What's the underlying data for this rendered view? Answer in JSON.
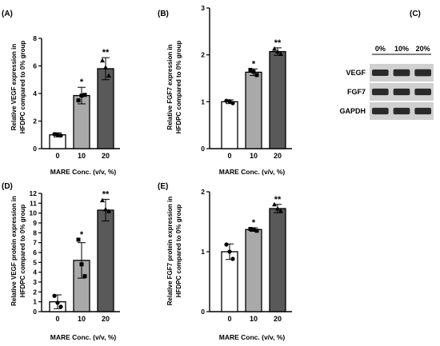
{
  "chart_data": [
    {
      "panel": "(A)",
      "type": "bar",
      "categories": [
        "0",
        "10",
        "20"
      ],
      "values": [
        1.0,
        3.85,
        5.8
      ],
      "errors": [
        0.15,
        0.6,
        0.8
      ],
      "points": [
        [
          1.05,
          0.95,
          1.0
        ],
        [
          3.5,
          3.9,
          3.85
        ],
        [
          6.4,
          5.3,
          5.9
        ]
      ],
      "point_markers": [
        "circle",
        "square",
        "triangle"
      ],
      "significance": [
        "",
        "*",
        "**"
      ],
      "bar_colors": [
        "#ffffff",
        "#a9a9a9",
        "#595959"
      ],
      "ylabel_line1": "Relative VEGF expression in",
      "ylabel_line2": "HFDPC compared to 0% group",
      "xlabel": "MARE Conc. (v/v, %)",
      "yticks": [
        "0",
        "2",
        "4",
        "6",
        "8"
      ],
      "ylim": [
        0,
        8
      ]
    },
    {
      "panel": "(B)",
      "type": "bar",
      "categories": [
        "0",
        "10",
        "20"
      ],
      "values": [
        1.0,
        1.63,
        2.07
      ],
      "errors": [
        0.04,
        0.07,
        0.08
      ],
      "points": [
        [
          1.02,
          0.97,
          1.01
        ],
        [
          1.68,
          1.57,
          1.64
        ],
        [
          2.13,
          2.02,
          2.07
        ]
      ],
      "point_markers": [
        "circle",
        "square",
        "triangle"
      ],
      "significance": [
        "",
        "*",
        "**"
      ],
      "bar_colors": [
        "#ffffff",
        "#a9a9a9",
        "#595959"
      ],
      "ylabel_line1": "Relative FGF7 expression in",
      "ylabel_line2": "HFDPC compared to 0% group",
      "xlabel": "MARE Conc. (v/v, %)",
      "yticks": [
        "0",
        "1",
        "2",
        "3"
      ],
      "ylim": [
        0,
        3
      ]
    },
    {
      "panel": "(D)",
      "type": "bar",
      "categories": [
        "0",
        "10",
        "20"
      ],
      "values": [
        1.0,
        5.2,
        10.3
      ],
      "errors": [
        0.7,
        1.8,
        1.1
      ],
      "points": [
        [
          1.6,
          0.5,
          0.9
        ],
        [
          7.3,
          3.6,
          4.8
        ],
        [
          11.3,
          10.2,
          10.4
        ]
      ],
      "point_markers": [
        "circle",
        "square",
        "triangle"
      ],
      "significance": [
        "",
        "*",
        "**"
      ],
      "bar_colors": [
        "#ffffff",
        "#a9a9a9",
        "#595959"
      ],
      "ylabel_line1": "Relative VEGF protein expression in",
      "ylabel_line2": "HFDPC compared to 0% group",
      "xlabel": "MARE Conc. (v/v, %)",
      "yticks": [
        "0",
        "1",
        "2",
        "3",
        "4",
        "5",
        "6",
        "7",
        "8",
        "9",
        "10",
        "11",
        "12"
      ],
      "ylim": [
        0,
        12
      ]
    },
    {
      "panel": "(E)",
      "type": "bar",
      "categories": [
        "0",
        "10",
        "20"
      ],
      "values": [
        1.0,
        1.37,
        1.72
      ],
      "errors": [
        0.13,
        0.03,
        0.07
      ],
      "points": [
        [
          1.12,
          0.88,
          1.0
        ],
        [
          1.38,
          1.35,
          1.37
        ],
        [
          1.79,
          1.68,
          1.72
        ]
      ],
      "point_markers": [
        "circle",
        "square",
        "triangle"
      ],
      "significance": [
        "",
        "*",
        "**"
      ],
      "bar_colors": [
        "#ffffff",
        "#a9a9a9",
        "#595959"
      ],
      "ylabel_line1": "Relative FGF7 protein expression in",
      "ylabel_line2": "HFDPC compared to 0% group",
      "xlabel": "MARE Conc. (v/v, %)",
      "yticks": [
        "0",
        "1",
        "2"
      ],
      "ylim": [
        0,
        2
      ]
    }
  ],
  "western_blot": {
    "panel": "(C)",
    "columns": [
      "0%",
      "10%",
      "20%"
    ],
    "rows": [
      "VEGF",
      "FGF7",
      "GAPDH"
    ],
    "band_intensity": [
      [
        0.8,
        0.9,
        0.95
      ],
      [
        0.85,
        0.85,
        0.85
      ],
      [
        0.85,
        0.85,
        0.85
      ]
    ],
    "band_color": "#2a2a2a",
    "background_color": "#d0d0d0"
  }
}
